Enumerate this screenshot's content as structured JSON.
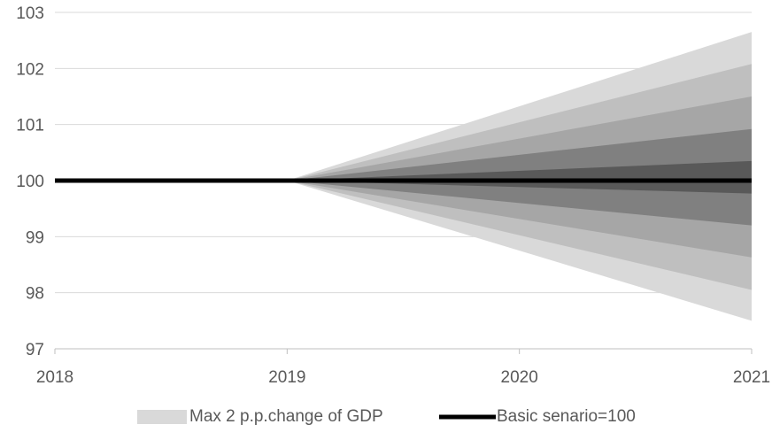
{
  "chart_data": {
    "type": "area",
    "title": "",
    "xlabel": "",
    "ylabel": "",
    "x_ticks": [
      "2018",
      "2019",
      "2020",
      "2021"
    ],
    "y_ticks": [
      "97",
      "98",
      "99",
      "100",
      "101",
      "102",
      "103"
    ],
    "xlim": [
      2018,
      2021
    ],
    "ylim": [
      97,
      103
    ],
    "grid": "horizontal",
    "legend_position": "bottom",
    "series": [
      {
        "name": "Basic senario=100",
        "x": [
          2018,
          2019,
          2020,
          2021
        ],
        "values": [
          100,
          100,
          100,
          100
        ],
        "color": "#000000"
      }
    ],
    "fan_bands": [
      {
        "name": "Max 2 p.p.change of GDP",
        "x": [
          2019,
          2021
        ],
        "upper": [
          100,
          102.65
        ],
        "lower": [
          100,
          97.5
        ],
        "color": "#d9d9d9"
      },
      {
        "x": [
          2019,
          2021
        ],
        "upper": [
          100,
          102.08
        ],
        "lower": [
          100,
          98.05
        ],
        "color": "#bfbfbf"
      },
      {
        "x": [
          2019,
          2021
        ],
        "upper": [
          100,
          101.5
        ],
        "lower": [
          100,
          98.63
        ],
        "color": "#a6a6a6"
      },
      {
        "x": [
          2019,
          2021
        ],
        "upper": [
          100,
          100.92
        ],
        "lower": [
          100,
          99.2
        ],
        "color": "#808080"
      },
      {
        "x": [
          2019,
          2021
        ],
        "upper": [
          100,
          100.35
        ],
        "lower": [
          100,
          99.77
        ],
        "color": "#595959"
      }
    ],
    "legend": [
      {
        "label": "Max 2 p.p.change of GDP",
        "symbol": "patch",
        "color": "#d9d9d9"
      },
      {
        "label": "Basic senario=100",
        "symbol": "line",
        "color": "#000000"
      }
    ],
    "colors": {
      "grid": "#d9d9d9",
      "axis": "#bfbfbf",
      "text": "#595959"
    }
  }
}
